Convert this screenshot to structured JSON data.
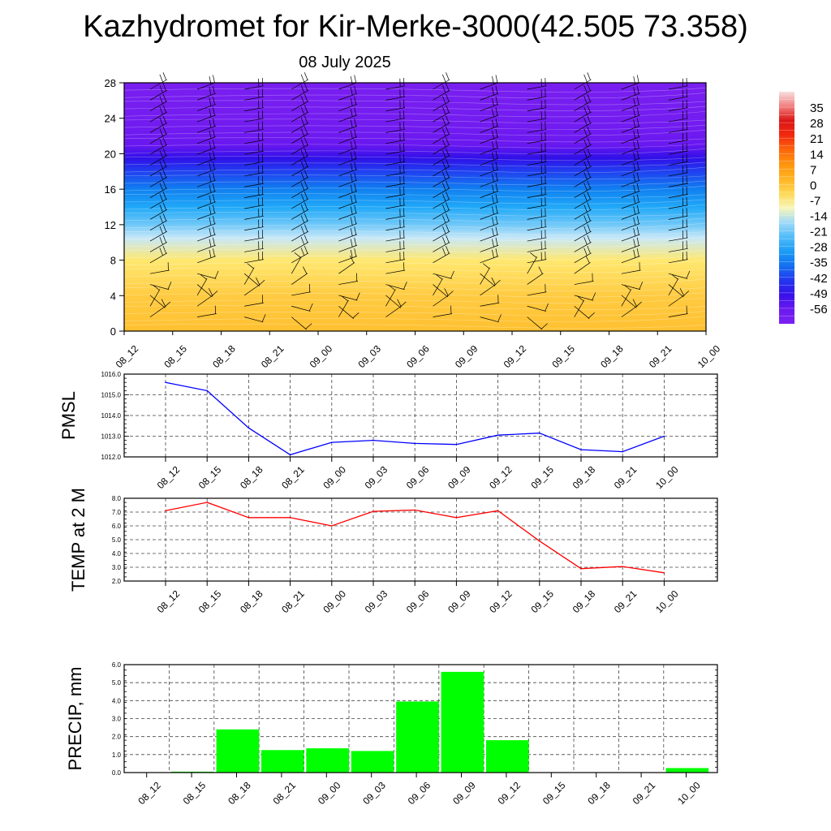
{
  "header": {
    "title": "Kazhydromet for Kir-Merke-3000(42.505 73.358)",
    "subtitle": "08 July 2025"
  },
  "chart_data": [
    {
      "type": "heatmap",
      "title": "",
      "xlabel": "",
      "ylabel": "",
      "x_ticks": [
        "08_12",
        "08_15",
        "08_18",
        "08_21",
        "09_00",
        "09_03",
        "09_06",
        "09_09",
        "09_12",
        "09_15",
        "09_18",
        "09_21",
        "10_00"
      ],
      "y_ticks": [
        0,
        4,
        8,
        12,
        16,
        20,
        24,
        28
      ],
      "ylim": [
        0,
        28
      ],
      "colorbar": {
        "labels": [
          35,
          28,
          21,
          14,
          7,
          0,
          -7,
          -14,
          -21,
          -28,
          -35,
          -42,
          -49,
          -56
        ],
        "min": -63,
        "max": 42
      },
      "temperature_profile": {
        "levels": [
          0,
          4,
          8,
          10.5,
          12,
          14,
          16,
          18,
          19.5,
          21,
          24,
          28
        ],
        "values": [
          0,
          -2,
          -7,
          -14,
          -21,
          -28,
          -35,
          -42,
          -49,
          -56,
          -60,
          -62
        ]
      },
      "wind_barbs": "shown"
    },
    {
      "type": "line",
      "ylabel": "PMSL",
      "categories": [
        "08_12",
        "08_15",
        "08_18",
        "08_21",
        "09_00",
        "09_03",
        "09_06",
        "09_09",
        "09_12",
        "09_15",
        "09_18",
        "09_21",
        "10_00"
      ],
      "series": [
        {
          "color": "#0000ff",
          "values": [
            1015.6,
            1015.2,
            1013.4,
            1012.1,
            1012.7,
            1012.8,
            1012.65,
            1012.6,
            1013.05,
            1013.15,
            1012.35,
            1012.25,
            1013.0
          ]
        }
      ],
      "ylim": [
        1012.0,
        1016.0
      ],
      "y_ticks": [
        "1012.0",
        "1013.0",
        "1014.0",
        "1015.0",
        "1016.0"
      ],
      "grid": true
    },
    {
      "type": "line",
      "ylabel": "TEMP at 2 M",
      "categories": [
        "08_12",
        "08_15",
        "08_18",
        "08_21",
        "09_00",
        "09_03",
        "09_06",
        "09_09",
        "09_12",
        "09_15",
        "09_18",
        "09_21",
        "10_00"
      ],
      "series": [
        {
          "color": "#ff0000",
          "values": [
            7.1,
            7.7,
            6.6,
            6.6,
            6.0,
            7.05,
            7.15,
            6.6,
            7.1,
            4.9,
            2.9,
            3.05,
            2.6
          ]
        }
      ],
      "ylim": [
        2.0,
        8.0
      ],
      "y_ticks": [
        "2.0",
        "3.0",
        "4.0",
        "5.0",
        "6.0",
        "7.0",
        "8.0"
      ],
      "grid": true
    },
    {
      "type": "bar",
      "ylabel": "PRECIP, mm",
      "categories": [
        "08_12",
        "08_15",
        "08_18",
        "08_21",
        "09_00",
        "09_03",
        "09_06",
        "09_09",
        "09_12",
        "09_15",
        "09_18",
        "09_21",
        "10_00"
      ],
      "values": [
        0.0,
        0.05,
        2.4,
        1.25,
        1.35,
        1.2,
        3.95,
        5.6,
        1.8,
        0.0,
        0.0,
        0.0,
        0.25
      ],
      "color": "#00ff00",
      "ylim": [
        0.0,
        6.0
      ],
      "y_ticks": [
        "0.0",
        "1.0",
        "2.0",
        "3.0",
        "4.0",
        "5.0",
        "6.0"
      ],
      "grid": true
    }
  ]
}
